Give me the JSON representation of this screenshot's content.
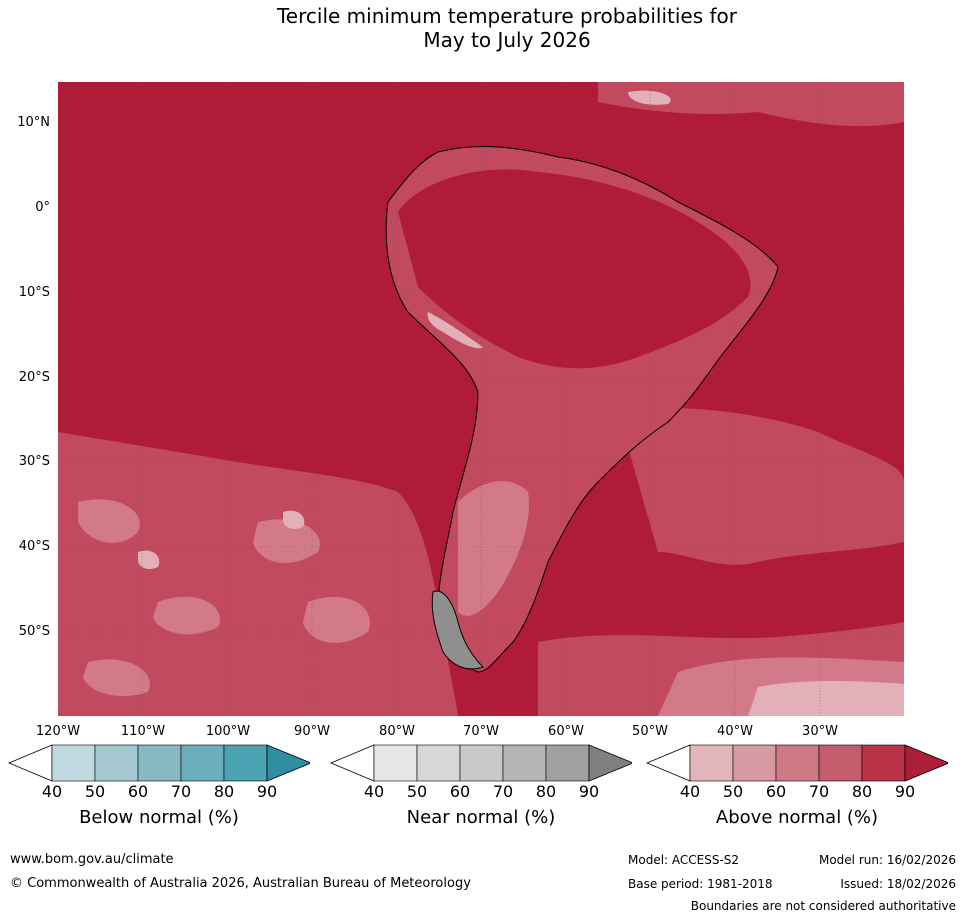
{
  "title_line1": "Tercile minimum temperature probabilities for",
  "title_line2": "May to July 2026",
  "lat_labels": [
    "10°N",
    "0°",
    "10°S",
    "20°S",
    "30°S",
    "40°S",
    "50°S"
  ],
  "lon_labels": [
    "120°W",
    "110°W",
    "100°W",
    "90°W",
    "80°W",
    "70°W",
    "60°W",
    "50°W",
    "40°W",
    "30°W"
  ],
  "colorbars": [
    {
      "title": "Below normal (%)",
      "ticks": [
        "40",
        "50",
        "60",
        "70",
        "80",
        "90"
      ],
      "colors": [
        "#c0d8df",
        "#a5c7cf",
        "#88b8c4",
        "#6aaebb",
        "#4aa2b2",
        "#2f8f9f"
      ]
    },
    {
      "title": "Near normal (%)",
      "ticks": [
        "40",
        "50",
        "60",
        "70",
        "80",
        "90"
      ],
      "colors": [
        "#e6e6e6",
        "#d7d7d7",
        "#c9c9c9",
        "#b5b5b5",
        "#a0a0a0",
        "#808080"
      ]
    },
    {
      "title": "Above normal (%)",
      "ticks": [
        "40",
        "50",
        "60",
        "70",
        "80",
        "90"
      ],
      "colors": [
        "#e2b5bb",
        "#d79aa3",
        "#cd7a86",
        "#c45c6b",
        "#b93449",
        "#ad1e37"
      ]
    }
  ],
  "footer": {
    "website": "www.bom.gov.au/climate",
    "copyright": "© Commonwealth of Australia 2026, Australian Bureau of Meteorology",
    "model": "Model: ACCESS-S2",
    "base_period": "Base period: 1981-2018",
    "model_run": "Model run: 16/02/2026",
    "issued": "Issued: 18/02/2026",
    "disclaimer": "Boundaries are not considered authoritative"
  },
  "colors": {
    "above_strong": "#b01c38",
    "above_mid": "#c24a5e",
    "above_light": "#d27a89",
    "above_pale": "#e2b0b8"
  }
}
